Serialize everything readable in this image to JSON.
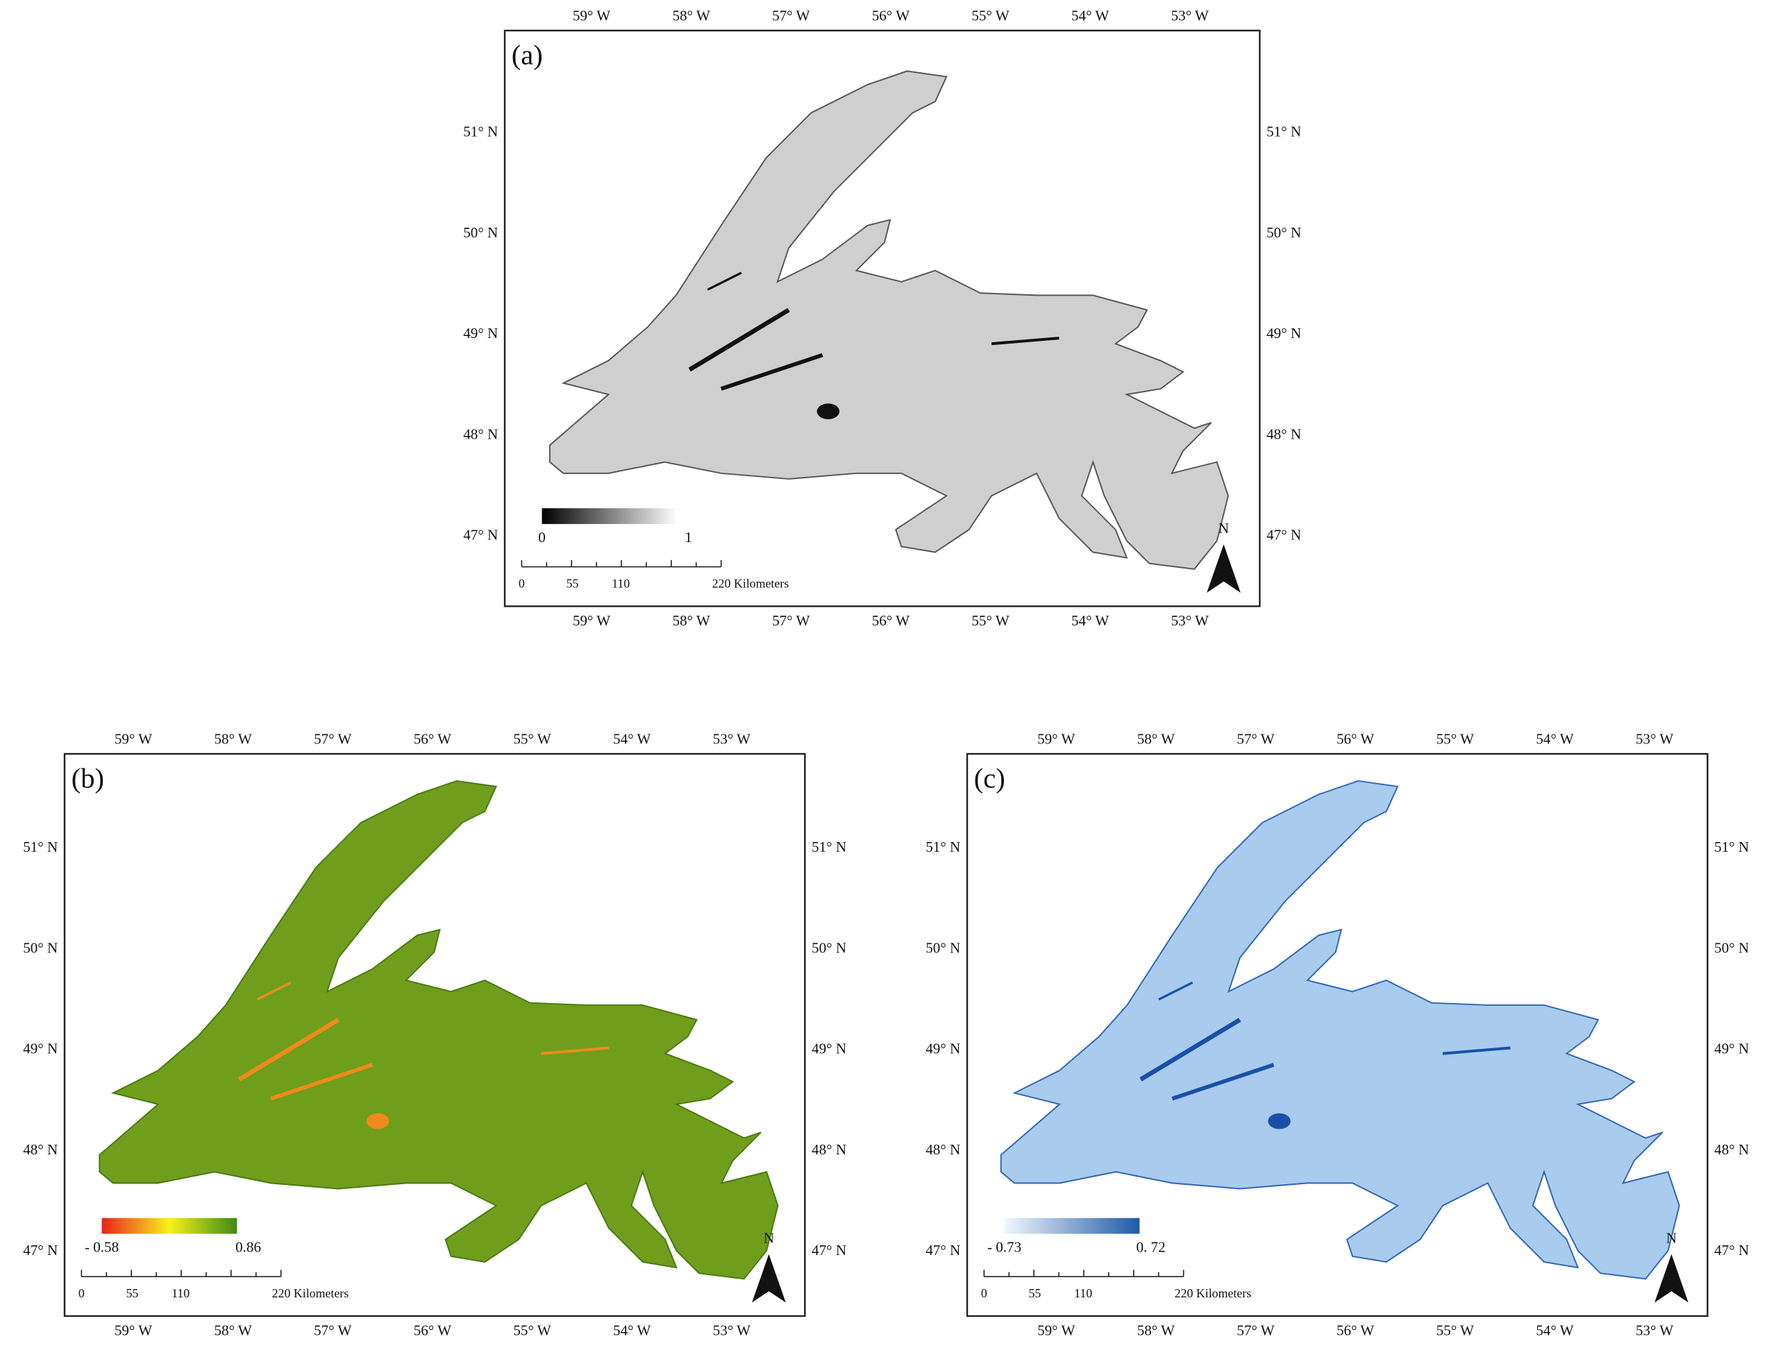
{
  "panels": [
    {
      "label": "(a)",
      "lon_labels": [
        "59° W",
        "58° W",
        "57° W",
        "56° W",
        "55° W",
        "54° W",
        "53° W"
      ],
      "lat_labels": [
        "51° N",
        "50° N",
        "49° N",
        "48° N",
        "47° N"
      ],
      "legend": {
        "min": "0",
        "max": "1"
      },
      "scale_bar": {
        "ticks": [
          "0",
          "55",
          "110"
        ],
        "end": "220 Kilometers"
      },
      "north": "N"
    },
    {
      "label": "(b)",
      "lon_labels": [
        "59° W",
        "58° W",
        "57° W",
        "56° W",
        "55° W",
        "54° W",
        "53° W"
      ],
      "lat_labels": [
        "51° N",
        "50° N",
        "49° N",
        "48° N",
        "47° N"
      ],
      "legend": {
        "min": "- 0.58",
        "max": "0.86"
      },
      "scale_bar": {
        "ticks": [
          "0",
          "55",
          "110"
        ],
        "end": "220 Kilometers"
      },
      "north": "N"
    },
    {
      "label": "(c)",
      "lon_labels": [
        "59° W",
        "58° W",
        "57° W",
        "56° W",
        "55° W",
        "54° W",
        "53° W"
      ],
      "lat_labels": [
        "51° N",
        "50° N",
        "49° N",
        "48° N",
        "47° N"
      ],
      "legend": {
        "min": "- 0.73",
        "max": "0. 72"
      },
      "scale_bar": {
        "ticks": [
          "0",
          "55",
          "110"
        ],
        "end": "220 Kilometers"
      },
      "north": "N"
    }
  ]
}
